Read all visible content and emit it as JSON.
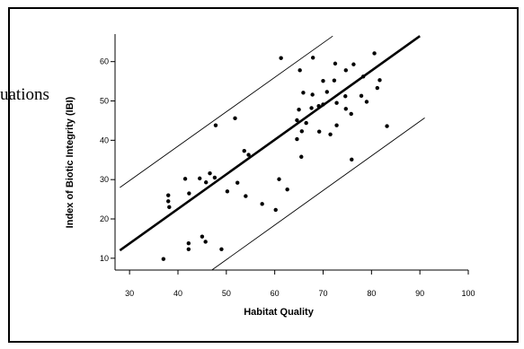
{
  "fragment_text": "uations",
  "chart_data": {
    "type": "scatter",
    "xlabel": "Habitat Quality",
    "ylabel": "Index of Biotic Integrity (IBI)",
    "xlim": [
      27,
      100
    ],
    "ylim": [
      7,
      67
    ],
    "x_ticks": [
      30,
      40,
      50,
      60,
      70,
      80,
      90,
      100
    ],
    "y_ticks": [
      10,
      20,
      30,
      40,
      50,
      60
    ],
    "grid": false,
    "regression_line": {
      "x": [
        28,
        90
      ],
      "y": [
        12,
        66.5
      ]
    },
    "prediction_band_upper": {
      "x": [
        28,
        72
      ],
      "y": [
        28,
        66.5
      ]
    },
    "prediction_band_lower": {
      "x": [
        47,
        91
      ],
      "y": [
        7,
        45.7
      ]
    },
    "points": [
      {
        "x": 37,
        "y": 9.8
      },
      {
        "x": 38,
        "y": 26
      },
      {
        "x": 38,
        "y": 24.5
      },
      {
        "x": 38.2,
        "y": 23
      },
      {
        "x": 41.5,
        "y": 30.2
      },
      {
        "x": 42.3,
        "y": 26.5
      },
      {
        "x": 42.2,
        "y": 13.8
      },
      {
        "x": 42.2,
        "y": 12.3
      },
      {
        "x": 44.5,
        "y": 30.3
      },
      {
        "x": 45,
        "y": 15.5
      },
      {
        "x": 45.8,
        "y": 29.3
      },
      {
        "x": 45.7,
        "y": 14.2
      },
      {
        "x": 46.6,
        "y": 31.6
      },
      {
        "x": 47.6,
        "y": 30.5
      },
      {
        "x": 47.8,
        "y": 43.8
      },
      {
        "x": 49,
        "y": 12.3
      },
      {
        "x": 50.2,
        "y": 27
      },
      {
        "x": 51.8,
        "y": 45.6
      },
      {
        "x": 52.3,
        "y": 29.2
      },
      {
        "x": 53.7,
        "y": 37.3
      },
      {
        "x": 54,
        "y": 25.8
      },
      {
        "x": 54.6,
        "y": 36.3
      },
      {
        "x": 57.4,
        "y": 23.8
      },
      {
        "x": 60.2,
        "y": 22.3
      },
      {
        "x": 60.9,
        "y": 30.1
      },
      {
        "x": 61.3,
        "y": 60.9
      },
      {
        "x": 62.6,
        "y": 27.5
      },
      {
        "x": 64.6,
        "y": 40.3
      },
      {
        "x": 64.6,
        "y": 45.1
      },
      {
        "x": 65,
        "y": 47.8
      },
      {
        "x": 65.2,
        "y": 57.8
      },
      {
        "x": 65.5,
        "y": 35.8
      },
      {
        "x": 65.6,
        "y": 42.3
      },
      {
        "x": 65.9,
        "y": 52.1
      },
      {
        "x": 66.5,
        "y": 44.4
      },
      {
        "x": 67.6,
        "y": 48.2
      },
      {
        "x": 67.8,
        "y": 51.6
      },
      {
        "x": 67.9,
        "y": 61
      },
      {
        "x": 69.1,
        "y": 48.7
      },
      {
        "x": 69.2,
        "y": 42.2
      },
      {
        "x": 70,
        "y": 55.1
      },
      {
        "x": 70,
        "y": 49.1
      },
      {
        "x": 70.8,
        "y": 52.3
      },
      {
        "x": 71.5,
        "y": 41.5
      },
      {
        "x": 72.3,
        "y": 55.2
      },
      {
        "x": 72.5,
        "y": 59.5
      },
      {
        "x": 72.8,
        "y": 43.8
      },
      {
        "x": 72.8,
        "y": 49.5
      },
      {
        "x": 74.6,
        "y": 51.2
      },
      {
        "x": 74.7,
        "y": 48
      },
      {
        "x": 74.7,
        "y": 57.8
      },
      {
        "x": 75.8,
        "y": 46.7
      },
      {
        "x": 75.9,
        "y": 35.1
      },
      {
        "x": 76.3,
        "y": 59.3
      },
      {
        "x": 77.9,
        "y": 51.3
      },
      {
        "x": 78.3,
        "y": 56.2
      },
      {
        "x": 79,
        "y": 49.8
      },
      {
        "x": 80.6,
        "y": 62.1
      },
      {
        "x": 81.2,
        "y": 53.3
      },
      {
        "x": 81.7,
        "y": 55.3
      },
      {
        "x": 83.2,
        "y": 43.6
      }
    ]
  }
}
